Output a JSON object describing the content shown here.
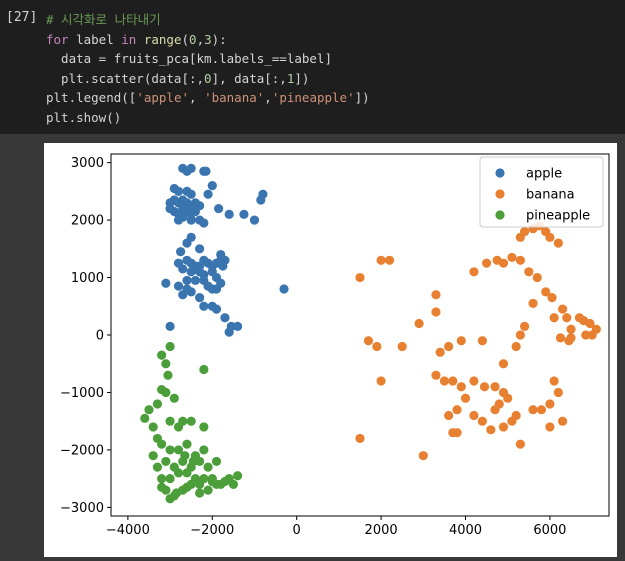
{
  "cell": {
    "prompt": "[27]",
    "lines": [
      [
        {
          "t": "# 시각화로 나타내기",
          "c": "cm"
        }
      ],
      [
        {
          "t": "for",
          "c": "kw"
        },
        {
          "t": " label "
        },
        {
          "t": "in",
          "c": "kw"
        },
        {
          "t": " "
        },
        {
          "t": "range",
          "c": "fn"
        },
        {
          "t": "("
        },
        {
          "t": "0",
          "c": "nb"
        },
        {
          "t": ","
        },
        {
          "t": "3",
          "c": "nb"
        },
        {
          "t": "):"
        }
      ],
      [
        {
          "t": "  data = fruits_pca[km.labels_==label]"
        }
      ],
      [
        {
          "t": "  plt.scatter(data[:,"
        },
        {
          "t": "0",
          "c": "nb"
        },
        {
          "t": "], data[:,"
        },
        {
          "t": "1",
          "c": "nb"
        },
        {
          "t": "])"
        }
      ],
      [
        {
          "t": "plt.legend(["
        },
        {
          "t": "'apple'",
          "c": "st"
        },
        {
          "t": ", "
        },
        {
          "t": "'banana'",
          "c": "st"
        },
        {
          "t": ","
        },
        {
          "t": "'pineapple'",
          "c": "st"
        },
        {
          "t": "])"
        }
      ],
      [
        {
          "t": "plt.show()"
        }
      ]
    ]
  },
  "chart_data": {
    "type": "scatter",
    "xlim": [
      -4400,
      7400
    ],
    "ylim": [
      -3150,
      3150
    ],
    "xticks": [
      -4000,
      -2000,
      0,
      2000,
      4000,
      6000
    ],
    "yticks": [
      -3000,
      -2000,
      -1000,
      0,
      1000,
      2000,
      3000
    ],
    "xticklabels": [
      "−4000",
      "−2000",
      "0",
      "2000",
      "4000",
      "6000"
    ],
    "yticklabels": [
      "−3000",
      "−2000",
      "−1000",
      "0",
      "1000",
      "2000",
      "3000"
    ],
    "grid": false,
    "legend": "top-right",
    "series": [
      {
        "name": "apple",
        "color": "#3a75b0",
        "points": [
          [
            -2700,
            2900
          ],
          [
            -2600,
            2850
          ],
          [
            -2500,
            2900
          ],
          [
            -2200,
            2850
          ],
          [
            -2000,
            2600
          ],
          [
            -2900,
            2550
          ],
          [
            -2800,
            2500
          ],
          [
            -2600,
            2500
          ],
          [
            -2500,
            2450
          ],
          [
            -3000,
            2300
          ],
          [
            -2900,
            2350
          ],
          [
            -2800,
            2300
          ],
          [
            -2700,
            2350
          ],
          [
            -2600,
            2300
          ],
          [
            -2500,
            2200
          ],
          [
            -2400,
            2300
          ],
          [
            -2300,
            2250
          ],
          [
            -2100,
            2450
          ],
          [
            -2150,
            2850
          ],
          [
            -3000,
            2200
          ],
          [
            -2900,
            2150
          ],
          [
            -2800,
            2100
          ],
          [
            -2700,
            2200
          ],
          [
            -2600,
            2150
          ],
          [
            -2500,
            2100
          ],
          [
            -2400,
            2150
          ],
          [
            -2700,
            2050
          ],
          [
            -2800,
            2000
          ],
          [
            -2500,
            2000
          ],
          [
            -2300,
            2000
          ],
          [
            -2200,
            1950
          ],
          [
            -1850,
            2200
          ],
          [
            -1600,
            2100
          ],
          [
            -1250,
            2100
          ],
          [
            -1000,
            2000
          ],
          [
            -850,
            2350
          ],
          [
            -800,
            2450
          ],
          [
            -2500,
            1700
          ],
          [
            -2600,
            1600
          ],
          [
            -2300,
            1500
          ],
          [
            -2750,
            1450
          ],
          [
            -2800,
            1250
          ],
          [
            -2600,
            1300
          ],
          [
            -2500,
            1250
          ],
          [
            -2400,
            1200
          ],
          [
            -2300,
            1200
          ],
          [
            -2200,
            1300
          ],
          [
            -2100,
            1250
          ],
          [
            -2000,
            1200
          ],
          [
            -1900,
            1250
          ],
          [
            -1800,
            1300
          ],
          [
            -1750,
            1200
          ],
          [
            -1700,
            1300
          ],
          [
            -1800,
            1400
          ],
          [
            -2700,
            1150
          ],
          [
            -2500,
            1100
          ],
          [
            -2300,
            1100
          ],
          [
            -2200,
            1050
          ],
          [
            -2600,
            950
          ],
          [
            -2400,
            950
          ],
          [
            -2200,
            950
          ],
          [
            -2000,
            1100
          ],
          [
            -1900,
            1000
          ],
          [
            -1800,
            900
          ],
          [
            -3100,
            900
          ],
          [
            -2800,
            850
          ],
          [
            -2600,
            800
          ],
          [
            -2100,
            850
          ],
          [
            -2000,
            800
          ],
          [
            -1900,
            800
          ],
          [
            -2500,
            750
          ],
          [
            -2700,
            700
          ],
          [
            -2300,
            650
          ],
          [
            -2200,
            500
          ],
          [
            -2000,
            500
          ],
          [
            -1900,
            450
          ],
          [
            -1700,
            300
          ],
          [
            -1550,
            150
          ],
          [
            -1400,
            150
          ],
          [
            -1600,
            50
          ],
          [
            -3000,
            150
          ],
          [
            -300,
            800
          ]
        ]
      },
      {
        "name": "banana",
        "color": "#e88032",
        "points": [
          [
            5300,
            1700
          ],
          [
            5400,
            1800
          ],
          [
            5600,
            1850
          ],
          [
            5750,
            1900
          ],
          [
            5900,
            1800
          ],
          [
            6000,
            1700
          ],
          [
            6200,
            1600
          ],
          [
            4750,
            1300
          ],
          [
            4900,
            1250
          ],
          [
            5100,
            1350
          ],
          [
            5300,
            1300
          ],
          [
            5500,
            1100
          ],
          [
            5700,
            1000
          ],
          [
            4500,
            1250
          ],
          [
            4200,
            1100
          ],
          [
            5900,
            750
          ],
          [
            6050,
            650
          ],
          [
            6100,
            300
          ],
          [
            6300,
            450
          ],
          [
            6400,
            300
          ],
          [
            6500,
            100
          ],
          [
            6700,
            300
          ],
          [
            6800,
            250
          ],
          [
            6950,
            200
          ],
          [
            7100,
            100
          ],
          [
            7000,
            0
          ],
          [
            6850,
            0
          ],
          [
            6500,
            -50
          ],
          [
            6250,
            -50
          ],
          [
            6450,
            -100
          ],
          [
            5600,
            550
          ],
          [
            5400,
            150
          ],
          [
            5300,
            0
          ],
          [
            5200,
            -200
          ],
          [
            4900,
            -500
          ],
          [
            4400,
            -100
          ],
          [
            3900,
            -100
          ],
          [
            3600,
            -200
          ],
          [
            3400,
            -300
          ],
          [
            3300,
            400
          ],
          [
            3300,
            700
          ],
          [
            2900,
            200
          ],
          [
            2000,
            1300
          ],
          [
            2200,
            1300
          ],
          [
            1500,
            1000
          ],
          [
            1700,
            -100
          ],
          [
            1900,
            -200
          ],
          [
            2000,
            -800
          ],
          [
            2500,
            -200
          ],
          [
            3300,
            -700
          ],
          [
            3500,
            -800
          ],
          [
            3700,
            -800
          ],
          [
            3900,
            -900
          ],
          [
            4200,
            -800
          ],
          [
            4450,
            -900
          ],
          [
            4700,
            -900
          ],
          [
            4900,
            -1000
          ],
          [
            5000,
            -1100
          ],
          [
            4800,
            -1200
          ],
          [
            4700,
            -1300
          ],
          [
            5600,
            -1300
          ],
          [
            5800,
            -1300
          ],
          [
            6000,
            -1200
          ],
          [
            6200,
            -1000
          ],
          [
            6100,
            -800
          ],
          [
            5200,
            -1400
          ],
          [
            5100,
            -1500
          ],
          [
            4900,
            -1600
          ],
          [
            4600,
            -1650
          ],
          [
            4400,
            -1500
          ],
          [
            4200,
            -1400
          ],
          [
            4000,
            -1100
          ],
          [
            3800,
            -1300
          ],
          [
            3600,
            -1400
          ],
          [
            3700,
            -1700
          ],
          [
            3800,
            -1700
          ],
          [
            5300,
            -1900
          ],
          [
            6300,
            -1500
          ],
          [
            6000,
            -1600
          ],
          [
            1500,
            -1800
          ],
          [
            3000,
            -2100
          ]
        ]
      },
      {
        "name": "pineapple",
        "color": "#4c9e3b",
        "points": [
          [
            -3000,
            -200
          ],
          [
            -3200,
            -350
          ],
          [
            -3100,
            -500
          ],
          [
            -3050,
            -700
          ],
          [
            -2200,
            -600
          ],
          [
            -3200,
            -950
          ],
          [
            -3100,
            -1000
          ],
          [
            -2900,
            -1100
          ],
          [
            -3300,
            -1200
          ],
          [
            -3500,
            -1300
          ],
          [
            -3600,
            -1450
          ],
          [
            -3400,
            -1600
          ],
          [
            -3300,
            -1800
          ],
          [
            -3000,
            -1500
          ],
          [
            -2800,
            -1600
          ],
          [
            -2700,
            -1500
          ],
          [
            -2500,
            -1500
          ],
          [
            -2200,
            -1600
          ],
          [
            -3200,
            -1900
          ],
          [
            -3000,
            -2000
          ],
          [
            -2800,
            -2000
          ],
          [
            -2600,
            -1900
          ],
          [
            -2400,
            -2100
          ],
          [
            -2200,
            -2000
          ],
          [
            -3400,
            -2100
          ],
          [
            -3300,
            -2300
          ],
          [
            -3100,
            -2200
          ],
          [
            -2900,
            -2300
          ],
          [
            -2700,
            -2200
          ],
          [
            -2500,
            -2300
          ],
          [
            -2300,
            -2200
          ],
          [
            -2100,
            -2300
          ],
          [
            -1900,
            -2200
          ],
          [
            -3200,
            -2500
          ],
          [
            -3000,
            -2500
          ],
          [
            -2800,
            -2400
          ],
          [
            -2600,
            -2400
          ],
          [
            -2400,
            -2500
          ],
          [
            -2200,
            -2500
          ],
          [
            -2000,
            -2500
          ],
          [
            -1800,
            -2600
          ],
          [
            -1600,
            -2500
          ],
          [
            -1400,
            -2450
          ],
          [
            -1500,
            -2600
          ],
          [
            -3100,
            -2700
          ],
          [
            -2900,
            -2800
          ],
          [
            -2700,
            -2700
          ],
          [
            -2500,
            -2600
          ],
          [
            -2300,
            -2600
          ],
          [
            -2100,
            -2700
          ],
          [
            -1900,
            -2600
          ],
          [
            -3000,
            -2850
          ],
          [
            -2850,
            -2750
          ],
          [
            -2600,
            -2650
          ],
          [
            -2300,
            -2750
          ],
          [
            -2000,
            -2550
          ],
          [
            -1700,
            -2550
          ],
          [
            -3200,
            -2650
          ],
          [
            -2450,
            -2200
          ],
          [
            -2650,
            -2100
          ]
        ]
      }
    ]
  }
}
